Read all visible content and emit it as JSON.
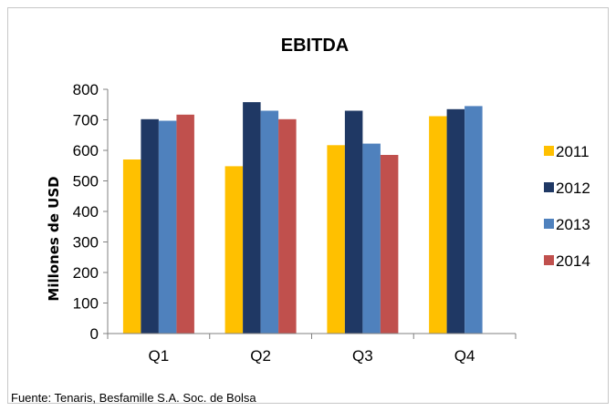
{
  "chart_data": {
    "type": "bar",
    "title": "EBITDA",
    "xlabel": "",
    "ylabel": "Millones de USD",
    "ylim": [
      0,
      800
    ],
    "yticks": [
      0,
      100,
      200,
      300,
      400,
      500,
      600,
      700,
      800
    ],
    "categories": [
      "Q1",
      "Q2",
      "Q3",
      "Q4"
    ],
    "series": [
      {
        "name": "2011",
        "color": "#FFC000",
        "values": [
          570,
          548,
          617,
          712
        ]
      },
      {
        "name": "2012",
        "color": "#1F3864",
        "values": [
          702,
          758,
          730,
          735
        ]
      },
      {
        "name": "2013",
        "color": "#4F81BD",
        "values": [
          697,
          730,
          622,
          745
        ]
      },
      {
        "name": "2014",
        "color": "#C0504D",
        "values": [
          717,
          702,
          585,
          null
        ]
      }
    ],
    "grid": false,
    "legend_position": "right"
  },
  "footer": {
    "source": "Fuente: Tenaris, Besfamille S.A. Soc. de Bolsa"
  }
}
